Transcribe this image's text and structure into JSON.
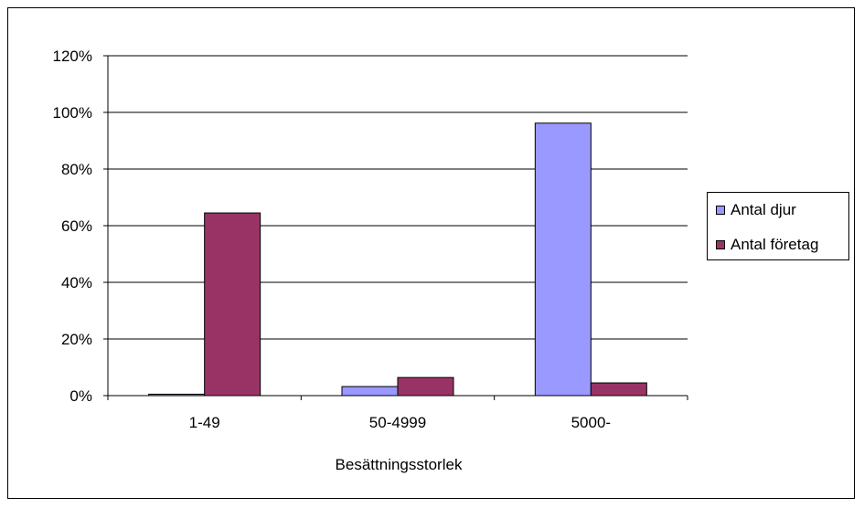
{
  "chart_data": {
    "type": "bar",
    "title": "",
    "xlabel": "Besättningsstorlek",
    "ylabel": "",
    "categories": [
      "1-49",
      "50-4999",
      "5000-"
    ],
    "series": [
      {
        "name": "Antal djur",
        "color": "#9999ff",
        "values": [
          0.5,
          3.2,
          96.2
        ]
      },
      {
        "name": "Antal företag",
        "color": "#993366",
        "values": [
          64.5,
          6.4,
          4.5
        ]
      }
    ],
    "ylim": [
      0,
      120
    ],
    "yticks": [
      0,
      20,
      40,
      60,
      80,
      100,
      120
    ],
    "ytick_labels": [
      "0%",
      "20%",
      "40%",
      "60%",
      "80%",
      "100%",
      "120%"
    ],
    "grid": true,
    "legend_position": "right"
  }
}
